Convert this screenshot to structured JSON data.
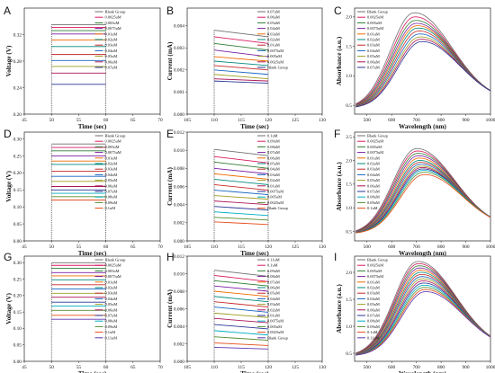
{
  "figure": {
    "panels": [
      {
        "letter": "A",
        "type": "voltage",
        "xlabel": "Time (sec)",
        "ylabel": "Voltage (V)",
        "xticks": [
          "45",
          "50",
          "55",
          "60",
          "65",
          "70"
        ],
        "xrange": [
          45,
          70
        ],
        "yticks": [
          "0.20",
          "0.24",
          "0.28",
          "0.32"
        ],
        "yrange": [
          0.2,
          0.36
        ],
        "legend": [
          "Blank Group",
          "0.0025uM",
          "0.005uM",
          "0.0075uM",
          "0.01uM",
          "0.02uM",
          "0.03uM",
          "0.04uM",
          "0.05uM",
          "0.06uM",
          "0.07uM"
        ],
        "values": [
          0.335,
          0.331,
          0.326,
          0.321,
          0.312,
          0.302,
          0.29,
          0.281,
          0.272,
          0.262,
          0.245
        ]
      },
      {
        "letter": "B",
        "type": "current",
        "xlabel": "Time (sec)",
        "ylabel": "Current (mA)",
        "xticks": [
          "105",
          "110",
          "115",
          "120",
          "125",
          "130"
        ],
        "xrange": [
          105,
          130
        ],
        "yticks": [
          "0.000",
          "0.001",
          "0.002",
          "0.003",
          "0.004"
        ],
        "yrange": [
          0,
          0.0048
        ],
        "legend": [
          "0.07uM",
          "0.06uM",
          "0.05uM",
          "0.04uM",
          "0.03uM",
          "0.02uM",
          "0.01uM",
          "0.0075uM",
          "0.005uM",
          "0.0025uM",
          "Blank Group"
        ],
        "start": [
          0.0038,
          0.0035,
          0.0032,
          0.0029,
          0.0026,
          0.0024,
          0.0022,
          0.002,
          0.0018,
          0.0016,
          0.0015
        ],
        "end": [
          0.0035,
          0.0032,
          0.0029,
          0.0026,
          0.0024,
          0.0022,
          0.002,
          0.0018,
          0.0016,
          0.0015,
          0.0014
        ]
      },
      {
        "letter": "C",
        "type": "absorb",
        "xlabel": "Wavelength (nm)",
        "ylabel": "Absorbance (a.u.)",
        "xticks": [
          "500",
          "600",
          "700",
          "800",
          "900",
          "1000"
        ],
        "xrange": [
          450,
          1000
        ],
        "yticks": [
          "0.5",
          "1.0",
          "1.5",
          "2.0"
        ],
        "yrange": [
          0.35,
          2.15
        ],
        "legend": [
          "Blank Group",
          "0.0025uM",
          "0.005uM",
          "0.0075uM",
          "0.01uM",
          "0.02uM",
          "0.03uM",
          "0.04uM",
          "0.05uM",
          "0.06uM",
          "0.07uM"
        ],
        "peak": [
          690,
          720
        ],
        "heights": [
          2.07,
          2.0,
          1.94,
          1.89,
          1.85,
          1.81,
          1.76,
          1.71,
          1.66,
          1.62,
          1.58
        ]
      },
      {
        "letter": "D",
        "type": "voltage",
        "xlabel": "Time (sec)",
        "ylabel": "Voltage (V)",
        "xticks": [
          "45",
          "50",
          "55",
          "60",
          "65",
          "70"
        ],
        "xrange": [
          45,
          70
        ],
        "yticks": [
          "0.00",
          "0.05",
          "0.10",
          "0.15",
          "0.20",
          "0.25",
          "0.30"
        ],
        "yrange": [
          0,
          0.32
        ],
        "legend": [
          "Blank Group",
          "0.0025uM",
          "0.005uM",
          "0.0075uM",
          "0.01uM",
          "0.02uM",
          "0.03uM",
          "0.04uM",
          "0.05uM",
          "0.06uM",
          "0.07uM",
          "0.08uM",
          "0.09uM",
          "0.1uM"
        ],
        "values": [
          0.285,
          0.275,
          0.265,
          0.25,
          0.235,
          0.225,
          0.205,
          0.19,
          0.175,
          0.16,
          0.15,
          0.14,
          0.13,
          0.12
        ]
      },
      {
        "letter": "E",
        "type": "current",
        "xlabel": "Time (sec)",
        "ylabel": "Current (mA)",
        "xticks": [
          "105",
          "110",
          "115",
          "120",
          "125",
          "130"
        ],
        "xrange": [
          105,
          130
        ],
        "yticks": [
          "0.000",
          "0.002",
          "0.004",
          "0.006",
          "0.008",
          "0.010",
          "0.012"
        ],
        "yrange": [
          0,
          0.012
        ],
        "legend": [
          "0.1uM",
          "0.09uM",
          "0.08uM",
          "0.07uM",
          "0.06uM",
          "0.05uM",
          "0.04uM",
          "0.03uM",
          "0.02uM",
          "0.01uM",
          "0.0075uM",
          "0.005uM",
          "0.0025uM",
          "Blank Group"
        ],
        "start": [
          0.0101,
          0.0093,
          0.0087,
          0.008,
          0.0074,
          0.0068,
          0.0062,
          0.0056,
          0.005,
          0.0044,
          0.0038,
          0.0032,
          0.0026,
          0.0021
        ],
        "end": [
          0.0094,
          0.0086,
          0.008,
          0.0074,
          0.0068,
          0.0062,
          0.0056,
          0.0051,
          0.0046,
          0.004,
          0.0034,
          0.0028,
          0.0023,
          0.0018
        ]
      },
      {
        "letter": "F",
        "type": "absorb",
        "xlabel": "Wavelength (nm)",
        "ylabel": "Absorbance (a.u.)",
        "xticks": [
          "500",
          "600",
          "700",
          "800",
          "900",
          "1000"
        ],
        "xrange": [
          450,
          1000
        ],
        "yticks": [
          "0.5",
          "1.0",
          "1.5",
          "2.0",
          "2.5"
        ],
        "yrange": [
          0.3,
          2.6
        ],
        "legend": [
          "Blank Group",
          "0.0025uM",
          "0.005uM",
          "0.0075uM",
          "0.01uM",
          "0.02uM",
          "0.03uM",
          "0.04uM",
          "0.05uM",
          "0.06uM",
          "0.07uM",
          "0.08uM",
          "0.09uM",
          "0.1uM"
        ],
        "peak": [
          700,
          730
        ],
        "heights": [
          2.25,
          2.2,
          2.15,
          2.1,
          2.05,
          2.0,
          1.96,
          1.92,
          1.88,
          1.85,
          1.82,
          1.79,
          1.75,
          1.7
        ]
      },
      {
        "letter": "G",
        "type": "voltage",
        "xlabel": "Time (sec)",
        "ylabel": "Voltage (V)",
        "xticks": [
          "45",
          "50",
          "55",
          "60",
          "65",
          "70"
        ],
        "xrange": [
          45,
          70
        ],
        "yticks": [
          "0.00",
          "0.05",
          "0.10",
          "0.15",
          "0.20",
          "0.25",
          "0.30"
        ],
        "yrange": [
          0,
          0.32
        ],
        "legend": [
          "Blank Group",
          "0.0025uM",
          "0.005uM",
          "0.0075uM",
          "0.01uM",
          "0.02uM",
          "0.03uM",
          "0.04uM",
          "0.05uM",
          "0.06uM",
          "0.07uM",
          "0.08uM",
          "0.09uM",
          "0.1uM",
          "0.11uM"
        ],
        "values": [
          0.3,
          0.292,
          0.283,
          0.27,
          0.26,
          0.248,
          0.233,
          0.22,
          0.207,
          0.195,
          0.18,
          0.168,
          0.155,
          0.14,
          0.128
        ]
      },
      {
        "letter": "H",
        "type": "current",
        "xlabel": "Time (sec)",
        "ylabel": "Current (mA)",
        "xticks": [
          "105",
          "110",
          "115",
          "120",
          "125",
          "130"
        ],
        "xrange": [
          105,
          130
        ],
        "yticks": [
          "0.000",
          "0.002",
          "0.004",
          "0.006",
          "0.008",
          "0.010",
          "0.012"
        ],
        "yrange": [
          0,
          0.012
        ],
        "legend": [
          "0.11uM",
          "0.1uM",
          "0.09uM",
          "0.08uM",
          "0.07uM",
          "0.06uM",
          "0.05uM",
          "0.04uM",
          "0.03uM",
          "0.02uM",
          "0.01uM",
          "0.0075uM",
          "0.005uM",
          "0.0025uM",
          "Blank Group"
        ],
        "start": [
          0.0104,
          0.0098,
          0.0092,
          0.0086,
          0.008,
          0.0074,
          0.0068,
          0.0062,
          0.0055,
          0.0049,
          0.0042,
          0.0035,
          0.0028,
          0.0021,
          0.0016
        ],
        "end": [
          0.0097,
          0.0091,
          0.0086,
          0.008,
          0.0074,
          0.0068,
          0.0062,
          0.0056,
          0.005,
          0.0044,
          0.0037,
          0.003,
          0.0024,
          0.0018,
          0.0014
        ]
      },
      {
        "letter": "I",
        "type": "absorb",
        "xlabel": "Wavelength (nm)",
        "ylabel": "Absorbance (a.u.)",
        "xticks": [
          "500",
          "600",
          "700",
          "800",
          "900",
          "1000"
        ],
        "xrange": [
          450,
          1000
        ],
        "yticks": [
          "0.5",
          "1.0",
          "1.5",
          "2.0"
        ],
        "yrange": [
          0.35,
          2.3
        ],
        "legend": [
          "Blank Group",
          "0.0025uM",
          "0.005uM",
          "0.0075uM",
          "0.01uM",
          "0.02uM",
          "0.03uM",
          "0.04uM",
          "0.05uM",
          "0.06uM",
          "0.07uM",
          "0.08uM",
          "0.09uM",
          "0.1uM",
          "0.11uM"
        ],
        "peak": [
          705,
          735
        ],
        "heights": [
          2.2,
          2.16,
          2.12,
          2.08,
          2.04,
          2.0,
          1.96,
          1.92,
          1.88,
          1.84,
          1.8,
          1.76,
          1.72,
          1.68,
          1.64
        ]
      }
    ],
    "colors": [
      "#6f6f6f",
      "#d81b60",
      "#2e7d32",
      "#7b1fa2",
      "#ef6c00",
      "#00897b",
      "#c62828",
      "#1565c0",
      "#9e9d24",
      "#ad1457",
      "#283593",
      "#00acc1",
      "#558b2f",
      "#e64a19",
      "#5e35b1"
    ]
  },
  "chart_data": [
    {
      "type": "line",
      "panel": "A",
      "title": "",
      "xlabel": "Time (sec)",
      "ylabel": "Voltage (V)",
      "xlim": [
        45,
        70
      ],
      "ylim": [
        0.2,
        0.36
      ],
      "series": [
        {
          "name": "Blank Group",
          "values": [
            0.335
          ]
        },
        {
          "name": "0.0025uM",
          "values": [
            0.331
          ]
        },
        {
          "name": "0.005uM",
          "values": [
            0.326
          ]
        },
        {
          "name": "0.0075uM",
          "values": [
            0.321
          ]
        },
        {
          "name": "0.01uM",
          "values": [
            0.312
          ]
        },
        {
          "name": "0.02uM",
          "values": [
            0.302
          ]
        },
        {
          "name": "0.03uM",
          "values": [
            0.29
          ]
        },
        {
          "name": "0.04uM",
          "values": [
            0.281
          ]
        },
        {
          "name": "0.05uM",
          "values": [
            0.272
          ]
        },
        {
          "name": "0.06uM",
          "values": [
            0.262
          ]
        },
        {
          "name": "0.07uM",
          "values": [
            0.245
          ]
        }
      ]
    },
    {
      "type": "line",
      "panel": "B",
      "title": "",
      "xlabel": "Time (sec)",
      "ylabel": "Current (mA)",
      "xlim": [
        105,
        130
      ],
      "ylim": [
        0,
        0.0048
      ]
    },
    {
      "type": "line",
      "panel": "C",
      "title": "",
      "xlabel": "Wavelength (nm)",
      "ylabel": "Absorbance (a.u.)",
      "xlim": [
        450,
        1000
      ],
      "ylim": [
        0.35,
        2.15
      ]
    },
    {
      "type": "line",
      "panel": "D",
      "title": "",
      "xlabel": "Time (sec)",
      "ylabel": "Voltage (V)",
      "xlim": [
        45,
        70
      ],
      "ylim": [
        0,
        0.32
      ]
    },
    {
      "type": "line",
      "panel": "E",
      "title": "",
      "xlabel": "Time (sec)",
      "ylabel": "Current (mA)",
      "xlim": [
        105,
        130
      ],
      "ylim": [
        0,
        0.012
      ]
    },
    {
      "type": "line",
      "panel": "F",
      "title": "",
      "xlabel": "Wavelength (nm)",
      "ylabel": "Absorbance (a.u.)",
      "xlim": [
        450,
        1000
      ],
      "ylim": [
        0.3,
        2.6
      ]
    },
    {
      "type": "line",
      "panel": "G",
      "title": "",
      "xlabel": "Time (sec)",
      "ylabel": "Voltage (V)",
      "xlim": [
        45,
        70
      ],
      "ylim": [
        0,
        0.32
      ]
    },
    {
      "type": "line",
      "panel": "H",
      "title": "",
      "xlabel": "Time (sec)",
      "ylabel": "Current (mA)",
      "xlim": [
        105,
        130
      ],
      "ylim": [
        0,
        0.012
      ]
    },
    {
      "type": "line",
      "panel": "I",
      "title": "",
      "xlabel": "Wavelength (nm)",
      "ylabel": "Absorbance (a.u.)",
      "xlim": [
        450,
        1000
      ],
      "ylim": [
        0.35,
        2.3
      ]
    }
  ]
}
